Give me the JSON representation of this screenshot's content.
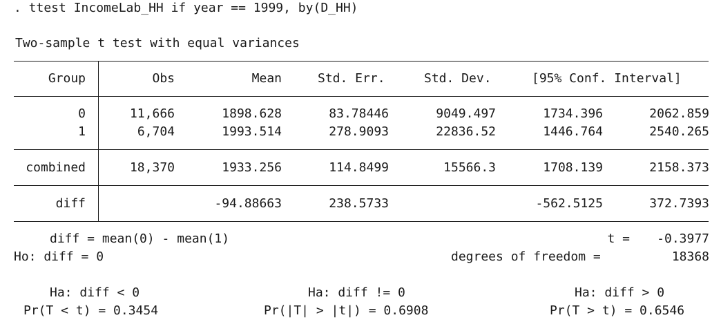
{
  "command": ". ttest IncomeLab_HH if year == 1999, by(D_HH)",
  "heading": "Two-sample t test with equal variances",
  "columns": {
    "group": "Group",
    "obs": "Obs",
    "mean": "Mean",
    "std_err": "Std. Err.",
    "std_dev": "Std. Dev.",
    "conf_interval": "[95% Conf. Interval]"
  },
  "rows": [
    {
      "group": "0",
      "obs": "11,666",
      "mean": "1898.628",
      "std_err": "83.78446",
      "std_dev": "9049.497",
      "ci_low": "1734.396",
      "ci_high": "2062.859"
    },
    {
      "group": "1",
      "obs": "6,704",
      "mean": "1993.514",
      "std_err": "278.9093",
      "std_dev": "22836.52",
      "ci_low": "1446.764",
      "ci_high": "2540.265"
    },
    {
      "group": "combined",
      "obs": "18,370",
      "mean": "1933.256",
      "std_err": "114.8499",
      "std_dev": "15566.3",
      "ci_low": "1708.139",
      "ci_high": "2158.373"
    },
    {
      "group": "diff",
      "obs": "",
      "mean": "-94.88663",
      "std_err": "238.5733",
      "std_dev": "",
      "ci_low": "-562.5125",
      "ci_high": "372.7393"
    }
  ],
  "footer": {
    "diff_def": "diff = mean(0) - mean(1)",
    "t_label": "t =",
    "t_value": "-0.3977",
    "ho": "Ho: diff = 0",
    "df_label": "degrees of freedom =",
    "df_value": "18368",
    "ha_left": "Ha: diff < 0",
    "ha_two": "Ha: diff != 0",
    "ha_right": "Ha: diff > 0",
    "p_left": "Pr(T < t) = 0.3454",
    "p_two": "Pr(|T| > |t|) = 0.6908",
    "p_right": "Pr(T > t) = 0.6546"
  }
}
